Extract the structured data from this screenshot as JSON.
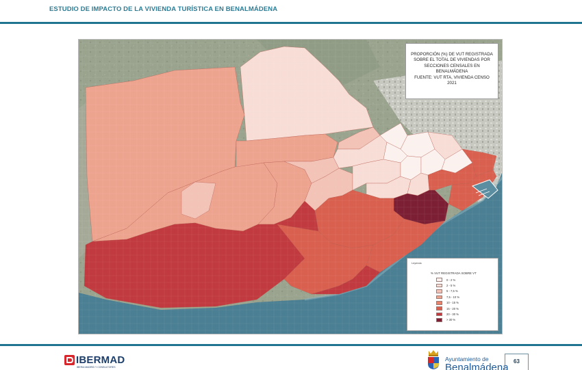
{
  "document": {
    "title": "ESTUDIO DE IMPACTO DE LA VIVIENDA TURÍSTICA EN BENALMÁDENA",
    "page_number": "63"
  },
  "map": {
    "title_lines": [
      "PROPORCIÓN (%) DE VUT REGISTRADA",
      "SOBRE EL TOTAL DE VIVIENDAS POR",
      "SECCIONES CENSALES EN BENALMÁDENA",
      "FUENTE: VUT RTA, VIVIENDA CENSO 2021"
    ],
    "legend": {
      "kicker": "Leyenda",
      "title": "% VUT REGISTRADA SOBRE VT",
      "classes": [
        {
          "label": "0 - 2 %",
          "color": "#fbf1ee"
        },
        {
          "label": "2 - 5 %",
          "color": "#f7ddd5"
        },
        {
          "label": "5 - 7,5 %",
          "color": "#f2c3b6"
        },
        {
          "label": "7,5 - 10 %",
          "color": "#eda48f"
        },
        {
          "label": "10 - 15 %",
          "color": "#e5836c"
        },
        {
          "label": "15 - 20 %",
          "color": "#d9604f"
        },
        {
          "label": "20 - 30 %",
          "color": "#c03a3f"
        },
        {
          "label": "> 30 %",
          "color": "#7d1f34"
        }
      ]
    },
    "colors": {
      "sea": "#4b7f93",
      "terrain": "#9aa38e",
      "urban": "#b9bab2"
    }
  },
  "footer": {
    "left_logo": "IBERMAD",
    "left_logo_tagline": "IBERIA MADRID Y CONSULTORES",
    "council_small": "Ayuntamiento de",
    "council_big": "Benalmádena"
  }
}
